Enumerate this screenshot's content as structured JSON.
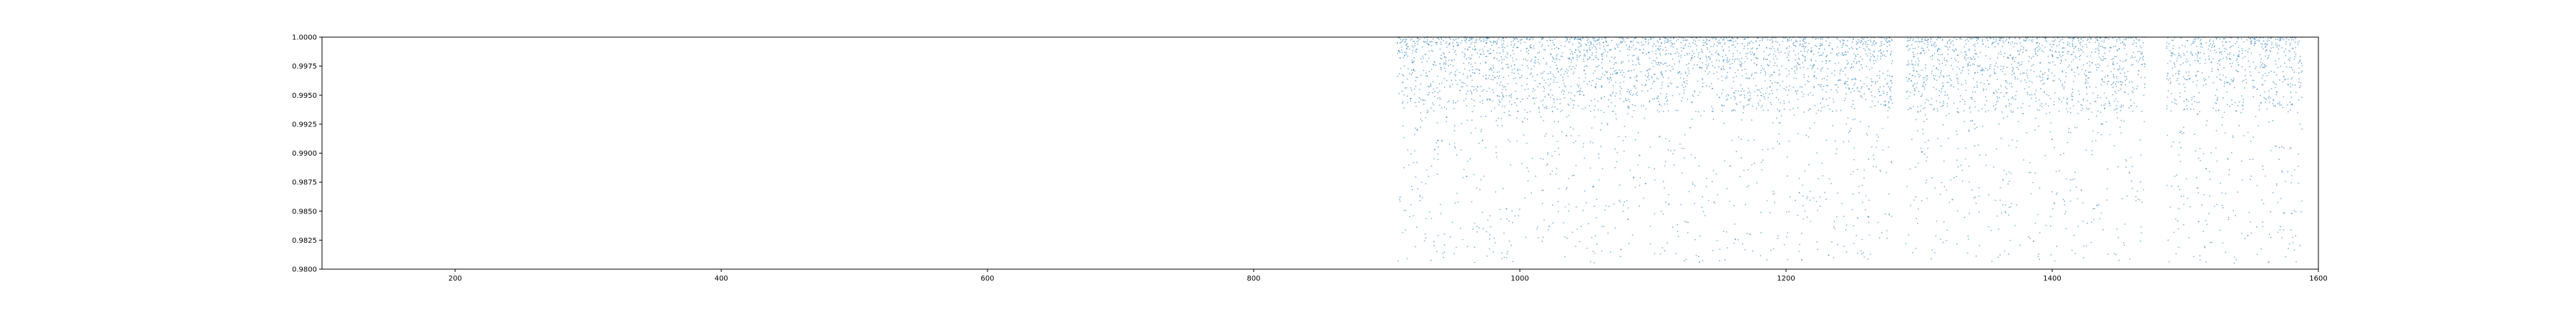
{
  "chart_data": {
    "type": "scatter",
    "title": "",
    "xlabel": "",
    "ylabel": "",
    "xlim": [
      100,
      1600
    ],
    "ylim": [
      0.98,
      1.0
    ],
    "grid": false,
    "marker_color": "#1f77b4",
    "xticks": [
      200,
      400,
      600,
      800,
      1000,
      1200,
      1400,
      1600
    ],
    "xtick_labels": [
      "200",
      "400",
      "600",
      "800",
      "1000",
      "1200",
      "1400",
      "1600"
    ],
    "yticks": [
      0.98,
      0.9825,
      0.985,
      0.9875,
      0.99,
      0.9925,
      0.995,
      0.9975,
      1.0
    ],
    "ytick_labels": [
      "0.9800",
      "0.9825",
      "0.9850",
      "0.9875",
      "0.9900",
      "0.9925",
      "0.9950",
      "0.9975",
      "1.0000"
    ],
    "series": [
      {
        "x_range": [
          908,
          1588
        ],
        "y_range": [
          0.9805,
          1.0
        ],
        "gaps": [
          [
            1280,
            1290
          ],
          [
            1470,
            1486
          ]
        ],
        "dense_band": [
          0.9935,
          1.0
        ],
        "points": [
          [
            908,
            0.9995
          ],
          [
            910,
            0.9982
          ],
          [
            912,
            0.9961
          ],
          [
            915,
            0.999
          ],
          [
            918,
            0.9947
          ],
          [
            920,
            0.9972
          ],
          [
            923,
            0.992
          ],
          [
            925,
            0.9863
          ],
          [
            929,
            0.9985
          ],
          [
            933,
            0.9958
          ],
          [
            936,
            0.9903
          ],
          [
            940,
            0.9977
          ],
          [
            945,
            0.9931
          ],
          [
            950,
            0.9992
          ],
          [
            955,
            0.9954
          ],
          [
            960,
            0.988
          ],
          [
            966,
            0.9969
          ],
          [
            972,
            0.9911
          ],
          [
            978,
            0.9986
          ],
          [
            985,
            0.9944
          ],
          [
            990,
            0.9852
          ],
          [
            996,
            0.9976
          ],
          [
            1002,
            0.9927
          ],
          [
            1008,
            0.9991
          ],
          [
            1015,
            0.996
          ],
          [
            1022,
            0.9837
          ],
          [
            1028,
            0.9973
          ],
          [
            1035,
            0.9915
          ],
          [
            1042,
            0.9989
          ],
          [
            1048,
            0.995
          ],
          [
            1055,
            0.9871
          ],
          [
            1062,
            0.9981
          ],
          [
            1070,
            0.9936
          ],
          [
            1076,
            0.9817
          ],
          [
            1083,
            0.9965
          ],
          [
            1090,
            0.9898
          ],
          [
            1097,
            0.9987
          ],
          [
            1105,
            0.9942
          ],
          [
            1112,
            0.9856
          ],
          [
            1120,
            0.997
          ],
          [
            1128,
            0.9922
          ],
          [
            1135,
            0.9806
          ],
          [
            1142,
            0.9983
          ],
          [
            1150,
            0.9948
          ],
          [
            1158,
            0.9889
          ],
          [
            1166,
            0.9975
          ],
          [
            1173,
            0.983
          ],
          [
            1180,
            0.9993
          ],
          [
            1188,
            0.9957
          ],
          [
            1195,
            0.9908
          ],
          [
            1202,
            0.998
          ],
          [
            1210,
            0.9866
          ],
          [
            1218,
            0.9938
          ],
          [
            1225,
            0.999
          ],
          [
            1232,
            0.9812
          ],
          [
            1240,
            0.9963
          ],
          [
            1248,
            0.9919
          ],
          [
            1255,
            0.9979
          ],
          [
            1262,
            0.9845
          ],
          [
            1270,
            0.9953
          ],
          [
            1276,
            0.9988
          ],
          [
            1295,
            0.9967
          ],
          [
            1302,
            0.9901
          ],
          [
            1310,
            0.9984
          ],
          [
            1318,
            0.9941
          ],
          [
            1325,
            0.986
          ],
          [
            1333,
            0.9974
          ],
          [
            1340,
            0.9928
          ],
          [
            1348,
            0.9994
          ],
          [
            1356,
            0.9952
          ],
          [
            1363,
            0.9877
          ],
          [
            1370,
            0.9982
          ],
          [
            1378,
            0.9934
          ],
          [
            1386,
            0.9824
          ],
          [
            1393,
            0.9968
          ],
          [
            1400,
            0.9912
          ],
          [
            1408,
            0.9987
          ],
          [
            1415,
            0.9946
          ],
          [
            1422,
            0.9868
          ],
          [
            1430,
            0.9978
          ],
          [
            1437,
            0.9925
          ],
          [
            1444,
            0.9991
          ],
          [
            1452,
            0.9959
          ],
          [
            1458,
            0.9883
          ],
          [
            1465,
            0.9971
          ],
          [
            1490,
            0.9986
          ],
          [
            1496,
            0.9918
          ],
          [
            1503,
            0.9964
          ],
          [
            1510,
            0.9841
          ],
          [
            1518,
            0.9981
          ],
          [
            1525,
            0.9937
          ],
          [
            1532,
            0.9895
          ],
          [
            1540,
            0.9976
          ],
          [
            1547,
            0.9829
          ],
          [
            1554,
            0.9955
          ],
          [
            1561,
            0.9989
          ],
          [
            1568,
            0.9906
          ],
          [
            1574,
            0.9966
          ],
          [
            1580,
            0.9848
          ],
          [
            1586,
            0.9979
          ]
        ]
      }
    ]
  }
}
